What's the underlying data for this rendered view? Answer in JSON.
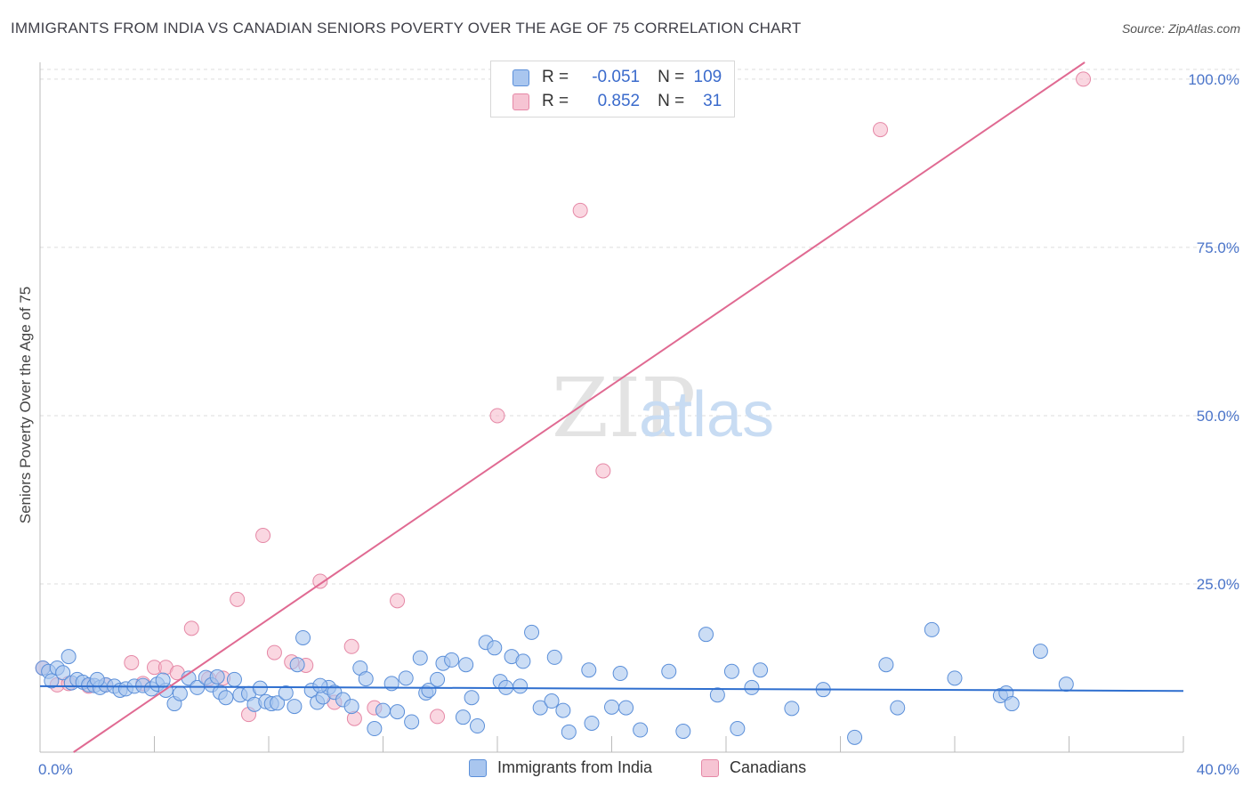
{
  "header": {
    "title": "IMMIGRANTS FROM INDIA VS CANADIAN SENIORS POVERTY OVER THE AGE OF 75 CORRELATION CHART",
    "source": "Source: ZipAtlas.com"
  },
  "watermark": {
    "part1": "ZIP",
    "part2": "atlas"
  },
  "legend": {
    "rows": [
      {
        "r_label": "R =",
        "r_value": "-0.051",
        "n_label": "N =",
        "n_value": "109"
      },
      {
        "r_label": "R =",
        "r_value": "0.852",
        "n_label": "N =",
        "n_value": "31"
      }
    ]
  },
  "bottom_legend": {
    "series1": "Immigrants from India",
    "series2": "Canadians"
  },
  "colors": {
    "india_fill": "#a9c6ef",
    "india_stroke": "#5b8fd9",
    "india_line": "#2f6fcf",
    "canada_fill": "#f6b6c8",
    "canada_stroke": "#e588a6",
    "canada_line": "#e06a92",
    "tick_label": "#4a74c9",
    "grid": "#dddddd"
  },
  "chart_data": {
    "type": "scatter",
    "title": "IMMIGRANTS FROM INDIA VS CANADIAN SENIORS POVERTY OVER THE AGE OF 75 CORRELATION CHART",
    "xlabel": "",
    "ylabel": "Seniors Poverty Over the Age of 75",
    "xlim": [
      0,
      40
    ],
    "ylim": [
      0,
      102.5
    ],
    "x_tick_labels": [
      "0.0%",
      "40.0%"
    ],
    "y_ticks": [
      25,
      50,
      75,
      100
    ],
    "y_tick_labels": [
      "25.0%",
      "50.0%",
      "75.0%",
      "100.0%"
    ],
    "grid": true,
    "legend_position": "top-center",
    "series": [
      {
        "name": "Immigrants from India",
        "r": -0.051,
        "n": 109,
        "trend": {
          "x": [
            0,
            40
          ],
          "y": [
            9.8,
            9.1
          ]
        },
        "points": [
          [
            0.1,
            12.5
          ],
          [
            0.3,
            12.0
          ],
          [
            0.6,
            12.5
          ],
          [
            0.8,
            11.8
          ],
          [
            1.0,
            14.2
          ],
          [
            1.1,
            10.3
          ],
          [
            1.3,
            10.8
          ],
          [
            1.5,
            10.4
          ],
          [
            1.7,
            10.0
          ],
          [
            1.9,
            9.9
          ],
          [
            2.1,
            9.6
          ],
          [
            2.3,
            10.0
          ],
          [
            2.6,
            9.8
          ],
          [
            2.8,
            9.2
          ],
          [
            3.0,
            9.4
          ],
          [
            3.3,
            9.8
          ],
          [
            3.6,
            9.9
          ],
          [
            3.9,
            9.4
          ],
          [
            4.1,
            10.1
          ],
          [
            4.4,
            9.2
          ],
          [
            4.7,
            7.2
          ],
          [
            4.9,
            8.7
          ],
          [
            5.2,
            11.0
          ],
          [
            5.5,
            9.6
          ],
          [
            5.8,
            11.1
          ],
          [
            6.0,
            10.0
          ],
          [
            6.3,
            8.9
          ],
          [
            6.5,
            8.1
          ],
          [
            6.8,
            10.8
          ],
          [
            7.0,
            8.5
          ],
          [
            7.3,
            8.7
          ],
          [
            7.5,
            7.1
          ],
          [
            7.7,
            9.5
          ],
          [
            7.9,
            7.5
          ],
          [
            8.1,
            7.2
          ],
          [
            8.3,
            7.3
          ],
          [
            8.6,
            8.8
          ],
          [
            8.9,
            6.8
          ],
          [
            9.0,
            13.0
          ],
          [
            9.2,
            17.0
          ],
          [
            9.5,
            9.2
          ],
          [
            9.7,
            7.4
          ],
          [
            9.9,
            8.2
          ],
          [
            10.1,
            9.6
          ],
          [
            10.3,
            8.9
          ],
          [
            10.6,
            7.8
          ],
          [
            10.9,
            6.8
          ],
          [
            11.2,
            12.5
          ],
          [
            11.4,
            10.9
          ],
          [
            11.7,
            3.5
          ],
          [
            12.0,
            6.2
          ],
          [
            12.3,
            10.2
          ],
          [
            12.5,
            6.0
          ],
          [
            12.8,
            11.0
          ],
          [
            13.0,
            4.5
          ],
          [
            13.3,
            14.0
          ],
          [
            13.5,
            8.8
          ],
          [
            13.6,
            9.2
          ],
          [
            13.9,
            10.8
          ],
          [
            14.1,
            13.2
          ],
          [
            14.4,
            13.7
          ],
          [
            14.9,
            13.0
          ],
          [
            14.8,
            5.2
          ],
          [
            15.1,
            8.1
          ],
          [
            15.3,
            3.9
          ],
          [
            15.6,
            16.3
          ],
          [
            15.9,
            15.5
          ],
          [
            16.1,
            10.5
          ],
          [
            16.3,
            9.6
          ],
          [
            16.5,
            14.2
          ],
          [
            16.9,
            13.5
          ],
          [
            16.8,
            9.8
          ],
          [
            17.2,
            17.8
          ],
          [
            17.5,
            6.6
          ],
          [
            17.9,
            7.6
          ],
          [
            18.0,
            14.1
          ],
          [
            18.3,
            6.2
          ],
          [
            18.5,
            3.0
          ],
          [
            19.2,
            12.2
          ],
          [
            19.3,
            4.3
          ],
          [
            20.0,
            6.7
          ],
          [
            20.3,
            11.7
          ],
          [
            20.5,
            6.6
          ],
          [
            21.0,
            3.3
          ],
          [
            22.0,
            12.0
          ],
          [
            22.5,
            3.1
          ],
          [
            23.3,
            17.5
          ],
          [
            23.7,
            8.5
          ],
          [
            24.2,
            12.0
          ],
          [
            24.4,
            3.5
          ],
          [
            24.9,
            9.6
          ],
          [
            25.2,
            12.2
          ],
          [
            26.3,
            6.5
          ],
          [
            27.4,
            9.3
          ],
          [
            28.5,
            2.2
          ],
          [
            29.6,
            13.0
          ],
          [
            30.0,
            6.6
          ],
          [
            31.2,
            18.2
          ],
          [
            32.0,
            11.0
          ],
          [
            33.6,
            8.4
          ],
          [
            33.8,
            8.8
          ],
          [
            34.0,
            7.2
          ],
          [
            35.0,
            15.0
          ],
          [
            35.9,
            10.1
          ],
          [
            0.4,
            10.6
          ],
          [
            2.0,
            10.8
          ],
          [
            4.3,
            10.7
          ],
          [
            6.2,
            11.2
          ],
          [
            9.8,
            9.9
          ]
        ]
      },
      {
        "name": "Canadians",
        "r": 0.852,
        "n": 31,
        "trend": {
          "x": [
            0,
            40
          ],
          "y": [
            -3.4,
            112.5
          ]
        },
        "points": [
          [
            0.1,
            12.5
          ],
          [
            0.6,
            10.0
          ],
          [
            1.0,
            10.2
          ],
          [
            1.7,
            9.8
          ],
          [
            2.3,
            10.0
          ],
          [
            3.2,
            13.3
          ],
          [
            3.6,
            10.2
          ],
          [
            4.0,
            12.6
          ],
          [
            4.4,
            12.6
          ],
          [
            4.8,
            11.8
          ],
          [
            5.3,
            18.4
          ],
          [
            5.9,
            10.9
          ],
          [
            6.4,
            11.0
          ],
          [
            6.9,
            22.7
          ],
          [
            7.3,
            5.6
          ],
          [
            7.8,
            32.2
          ],
          [
            8.2,
            14.8
          ],
          [
            8.8,
            13.4
          ],
          [
            9.3,
            12.9
          ],
          [
            9.8,
            25.4
          ],
          [
            10.3,
            7.4
          ],
          [
            10.9,
            15.7
          ],
          [
            11.0,
            5.0
          ],
          [
            11.7,
            6.6
          ],
          [
            12.5,
            22.5
          ],
          [
            13.9,
            5.3
          ],
          [
            16.0,
            50.0
          ],
          [
            18.9,
            80.5
          ],
          [
            19.7,
            41.8
          ],
          [
            29.4,
            92.5
          ],
          [
            36.5,
            100.0
          ]
        ]
      }
    ]
  }
}
